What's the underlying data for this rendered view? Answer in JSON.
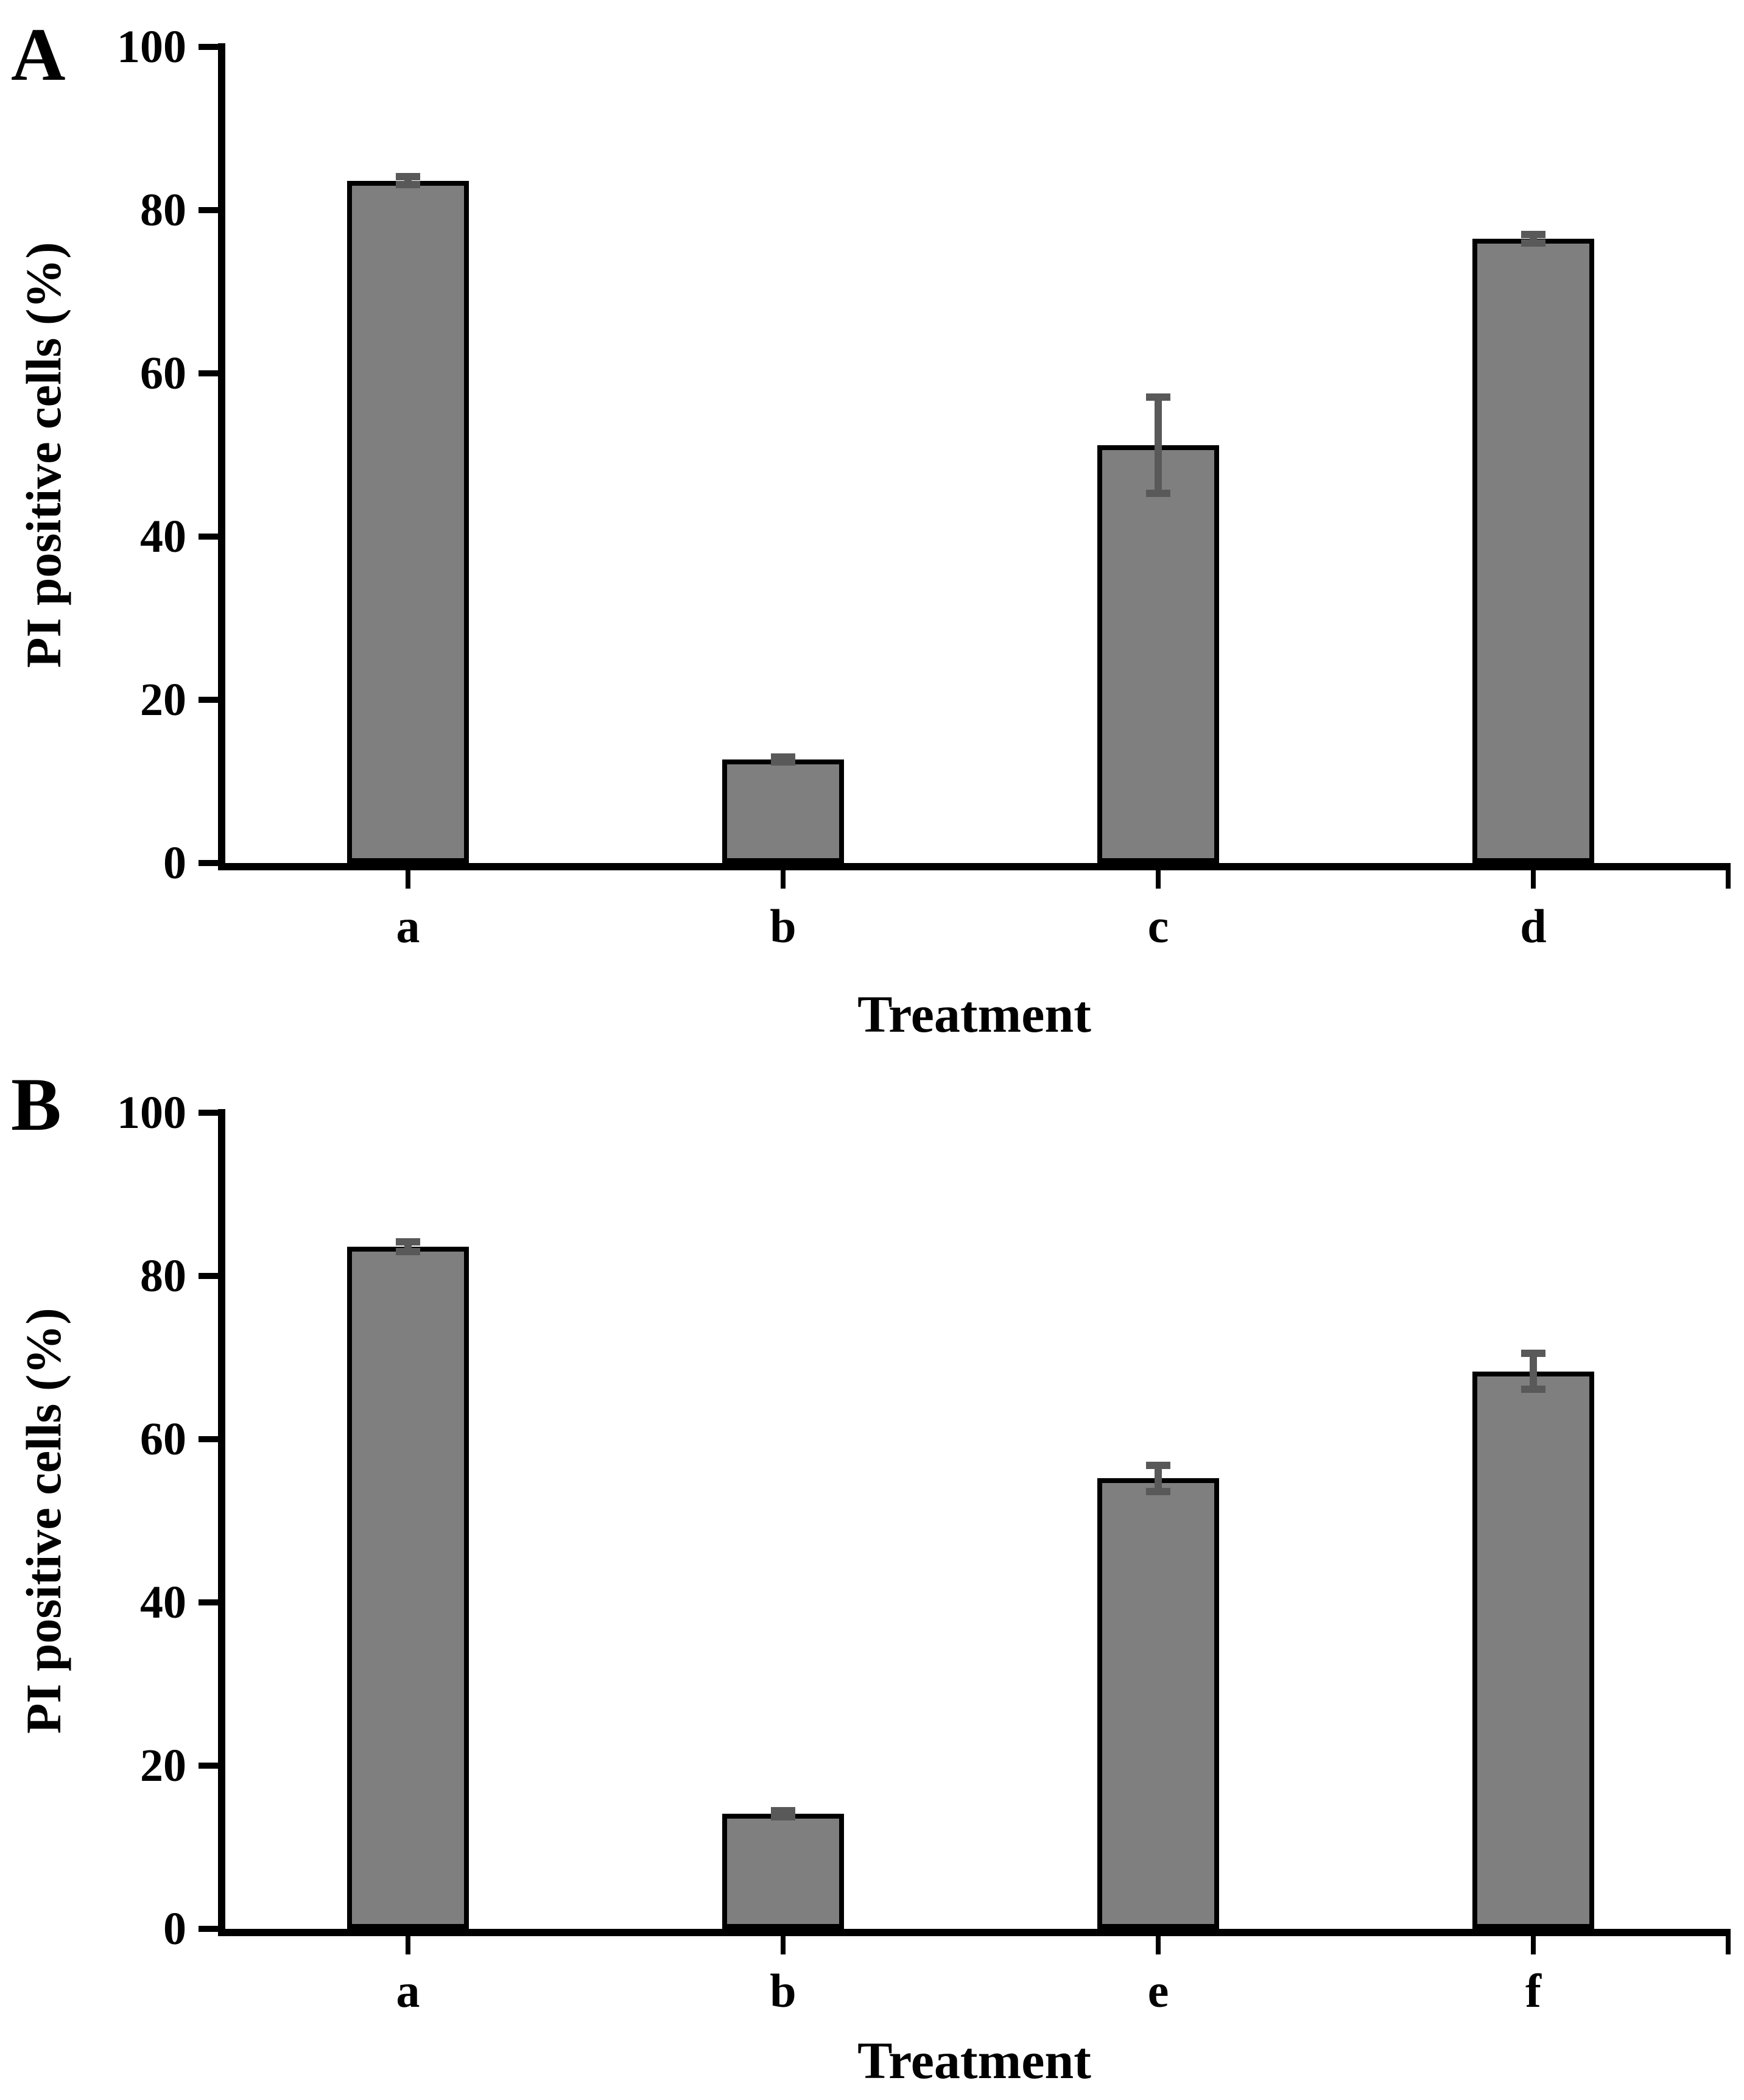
{
  "figure_title": "",
  "colors": {
    "bar_fill": "#7f7f7f",
    "bar_outline": "#000000",
    "error_bar": "#595959",
    "axis": "#000000",
    "background": "#ffffff"
  },
  "chart_data": [
    {
      "type": "bar",
      "panel_label": "A",
      "ylabel": "PI positive cells (%)",
      "xlabel": "Treatment",
      "categories": [
        "a",
        "b",
        "c",
        "d"
      ],
      "values": [
        83.6,
        12.7,
        51.2,
        76.5
      ],
      "errors": [
        0.5,
        0.3,
        5.9,
        0.5
      ],
      "ylim": [
        0,
        100
      ],
      "yticks": [
        0,
        20,
        40,
        60,
        80,
        100
      ],
      "grid": "off",
      "legend": "none"
    },
    {
      "type": "bar",
      "panel_label": "B",
      "ylabel": "PI positive cells (%)",
      "xlabel": "Treatment",
      "categories": [
        "a",
        "b",
        "e",
        "f"
      ],
      "values": [
        83.6,
        14.1,
        55.2,
        68.3
      ],
      "errors": [
        0.6,
        0.4,
        1.6,
        2.2
      ],
      "ylim": [
        0,
        100
      ],
      "yticks": [
        0,
        20,
        40,
        60,
        80,
        100
      ],
      "grid": "off",
      "legend": "none"
    }
  ]
}
